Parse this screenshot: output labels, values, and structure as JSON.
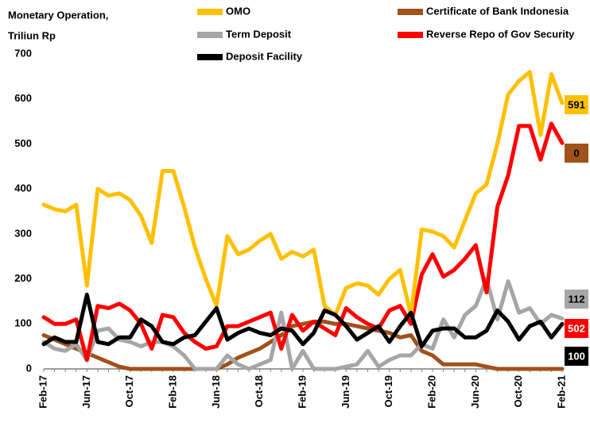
{
  "chart_data": {
    "type": "line",
    "title": [
      "Monetary Operation,",
      "Triliun Rp"
    ],
    "categories": [
      "Feb-17",
      null,
      null,
      null,
      "Jun-17",
      null,
      null,
      null,
      "Oct-17",
      null,
      null,
      null,
      "Feb-18",
      null,
      null,
      null,
      "Jun-18",
      null,
      null,
      null,
      "Oct-18",
      null,
      null,
      null,
      "Feb-19",
      null,
      null,
      null,
      "Jun-19",
      null,
      null,
      null,
      "Oct-19",
      null,
      null,
      null,
      "Feb-20",
      null,
      null,
      null,
      "Jun-20",
      null,
      null,
      null,
      "Oct-20",
      null,
      null,
      null,
      "Feb-21"
    ],
    "series": [
      {
        "name": "OMO",
        "color": "#ffc000",
        "values": [
          365,
          355,
          350,
          365,
          185,
          400,
          385,
          390,
          375,
          340,
          280,
          440,
          440,
          360,
          270,
          200,
          140,
          295,
          255,
          265,
          285,
          300,
          245,
          260,
          250,
          265,
          140,
          120,
          180,
          190,
          185,
          165,
          200,
          220,
          120,
          310,
          305,
          295,
          270,
          330,
          390,
          410,
          500,
          610,
          640,
          660,
          520,
          655,
          591
        ]
      },
      {
        "name": "Certificate of Bank Indonesia",
        "color": "#a0521a",
        "values": [
          75,
          65,
          55,
          45,
          35,
          25,
          15,
          5,
          0,
          0,
          0,
          0,
          0,
          0,
          0,
          0,
          0,
          10,
          25,
          35,
          45,
          60,
          75,
          95,
          100,
          105,
          105,
          100,
          100,
          95,
          90,
          85,
          80,
          70,
          75,
          40,
          30,
          10,
          10,
          10,
          10,
          5,
          0,
          0,
          0,
          0,
          0,
          0,
          0
        ]
      },
      {
        "name": "Term Deposit",
        "color": "#a6a6a6",
        "values": [
          60,
          45,
          40,
          55,
          20,
          85,
          90,
          65,
          60,
          50,
          60,
          60,
          50,
          30,
          0,
          0,
          0,
          30,
          10,
          0,
          10,
          20,
          125,
          0,
          40,
          0,
          0,
          0,
          5,
          10,
          40,
          5,
          20,
          30,
          30,
          55,
          45,
          110,
          70,
          120,
          140,
          200,
          110,
          195,
          125,
          135,
          100,
          120,
          112
        ]
      },
      {
        "name": "Reverse Repo of Gov Security",
        "color": "#ff0000",
        "values": [
          115,
          100,
          100,
          110,
          20,
          140,
          135,
          145,
          130,
          100,
          45,
          120,
          115,
          80,
          60,
          45,
          50,
          95,
          95,
          105,
          115,
          125,
          45,
          120,
          85,
          105,
          90,
          75,
          135,
          115,
          100,
          90,
          130,
          140,
          100,
          210,
          255,
          205,
          220,
          245,
          275,
          170,
          360,
          430,
          540,
          540,
          465,
          545,
          502
        ]
      },
      {
        "name": "Deposit Facility",
        "color": "#000000",
        "values": [
          55,
          70,
          60,
          60,
          165,
          60,
          55,
          70,
          70,
          110,
          95,
          60,
          55,
          70,
          75,
          105,
          135,
          65,
          80,
          90,
          80,
          75,
          90,
          85,
          55,
          80,
          130,
          120,
          95,
          65,
          80,
          95,
          60,
          95,
          125,
          50,
          85,
          90,
          90,
          70,
          70,
          85,
          130,
          105,
          65,
          95,
          105,
          70,
          100
        ]
      }
    ],
    "ylim": [
      0,
      700
    ],
    "yticks": [
      0,
      100,
      200,
      300,
      400,
      500,
      600,
      700
    ],
    "grid": false
  }
}
